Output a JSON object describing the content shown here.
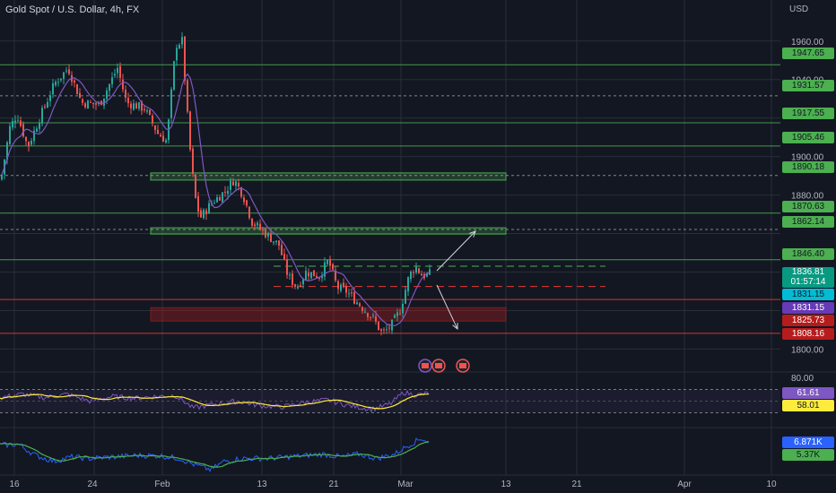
{
  "header": {
    "title": "Gold Spot / U.S. Dollar, 4h, FX",
    "currency": "USD"
  },
  "colors": {
    "bg": "#131722",
    "up": "#26a69a",
    "down": "#ef5350",
    "grid": "#2a2e39",
    "level": "#4caf50",
    "support": "#e53935",
    "rsi": "#7e57c2",
    "rsi_ma": "#ffeb3b",
    "osc": "#2962ff",
    "osc_ma": "#4caf50"
  },
  "price_axis": {
    "ticks": [
      1960,
      1940,
      1900,
      1880,
      1800
    ]
  },
  "time_axis": {
    "labels": [
      "16",
      "24",
      "Feb",
      "13",
      "21",
      "Mar",
      "13",
      "21",
      "Apr",
      "10"
    ]
  },
  "levels": {
    "solid_green": [
      "1947.65",
      "1917.55",
      "1905.46",
      "1870.63",
      "1846.40"
    ],
    "dashed": [
      "1931.57",
      "1890.18",
      "1862.14"
    ],
    "red": [
      "1825.73",
      "1808.16"
    ]
  },
  "tags": {
    "current_price": "1836.81",
    "countdown": "01:57:14",
    "ma_cyan": "1831.15",
    "ma_purple": "1831.15"
  },
  "rsi": {
    "axis_label": "80.00",
    "value": "61.61",
    "ma": "58.01"
  },
  "oscillator": {
    "value": "6.871K",
    "ma": "5.37K"
  },
  "chart_data": {
    "type": "candlestick",
    "symbol": "Gold Spot / U.S. Dollar",
    "timeframe": "4h",
    "ylim": [
      1796,
      1972
    ],
    "anchors": [
      [
        0,
        1888
      ],
      [
        10,
        1915
      ],
      [
        18,
        1922
      ],
      [
        30,
        1905
      ],
      [
        45,
        1922
      ],
      [
        60,
        1938
      ],
      [
        75,
        1946
      ],
      [
        90,
        1928
      ],
      [
        110,
        1927
      ],
      [
        130,
        1946
      ],
      [
        140,
        1928
      ],
      [
        160,
        1925
      ],
      [
        175,
        1912
      ],
      [
        185,
        1908
      ],
      [
        195,
        1958
      ],
      [
        202,
        1960
      ],
      [
        210,
        1908
      ],
      [
        216,
        1880
      ],
      [
        222,
        1868
      ],
      [
        235,
        1876
      ],
      [
        250,
        1882
      ],
      [
        260,
        1888
      ],
      [
        270,
        1880
      ],
      [
        280,
        1866
      ],
      [
        295,
        1860
      ],
      [
        310,
        1854
      ],
      [
        320,
        1838
      ],
      [
        330,
        1832
      ],
      [
        340,
        1840
      ],
      [
        355,
        1838
      ],
      [
        365,
        1846
      ],
      [
        375,
        1832
      ],
      [
        385,
        1830
      ],
      [
        400,
        1823
      ],
      [
        415,
        1816
      ],
      [
        425,
        1808
      ],
      [
        435,
        1812
      ],
      [
        445,
        1820
      ],
      [
        455,
        1838
      ],
      [
        462,
        1843
      ],
      [
        470,
        1838
      ],
      [
        478,
        1839
      ]
    ],
    "rsi_anchors": [
      [
        0,
        56
      ],
      [
        25,
        62
      ],
      [
        50,
        56
      ],
      [
        75,
        62
      ],
      [
        100,
        50
      ],
      [
        125,
        58
      ],
      [
        150,
        55
      ],
      [
        175,
        58
      ],
      [
        195,
        60
      ],
      [
        205,
        50
      ],
      [
        215,
        38
      ],
      [
        240,
        45
      ],
      [
        265,
        50
      ],
      [
        290,
        42
      ],
      [
        315,
        40
      ],
      [
        340,
        48
      ],
      [
        365,
        52
      ],
      [
        390,
        42
      ],
      [
        415,
        36
      ],
      [
        435,
        45
      ],
      [
        450,
        65
      ],
      [
        465,
        60
      ],
      [
        478,
        64
      ]
    ],
    "osc_anchors": [
      [
        0,
        5
      ],
      [
        20,
        6
      ],
      [
        40,
        -2
      ],
      [
        60,
        -6
      ],
      [
        80,
        -3
      ],
      [
        100,
        -4
      ],
      [
        125,
        -3
      ],
      [
        150,
        -2
      ],
      [
        175,
        -2
      ],
      [
        200,
        -4
      ],
      [
        215,
        -8
      ],
      [
        235,
        -12
      ],
      [
        250,
        -6
      ],
      [
        270,
        -4
      ],
      [
        300,
        -4
      ],
      [
        320,
        -3
      ],
      [
        340,
        -2
      ],
      [
        360,
        -1
      ],
      [
        380,
        -3
      ],
      [
        400,
        -1
      ],
      [
        420,
        -4
      ],
      [
        440,
        -1
      ],
      [
        455,
        5
      ],
      [
        470,
        10
      ],
      [
        478,
        7
      ]
    ]
  }
}
